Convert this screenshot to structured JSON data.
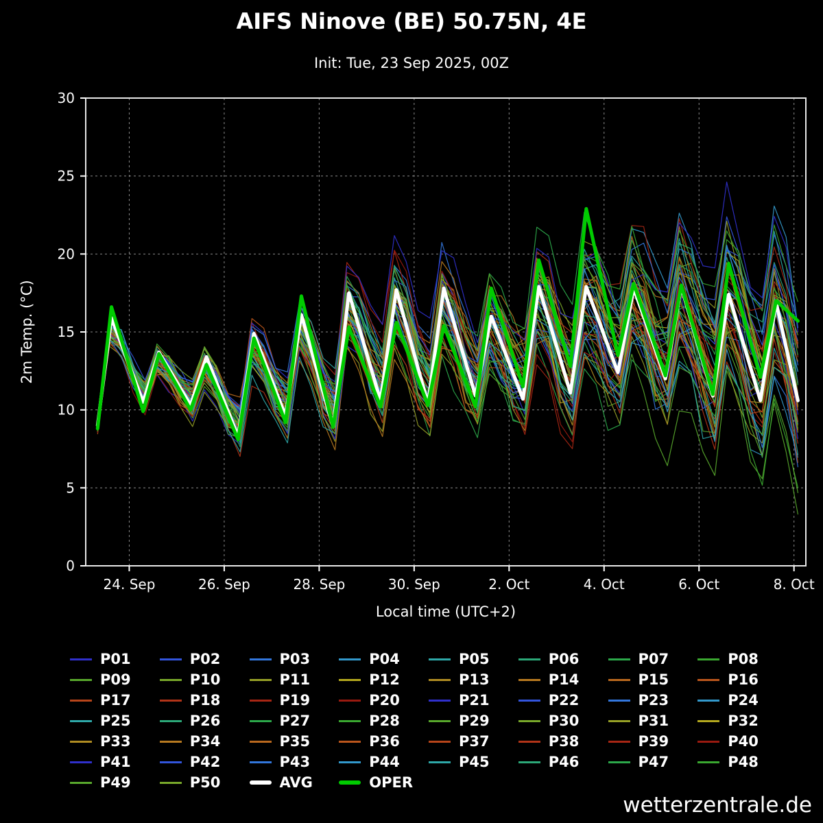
{
  "page": {
    "background": "#000000",
    "watermark": "wetterzentrale.de"
  },
  "chart_data": {
    "type": "line",
    "title": "AIFS Ninove (BE) 50.75N, 4E",
    "subtitle": "Init: Tue, 23 Sep 2025, 00Z",
    "xlabel": "Local time (UTC+2)",
    "ylabel": "2m Temp. (°C)",
    "ylim": [
      0,
      30
    ],
    "yticks": [
      0,
      5,
      10,
      15,
      20,
      25,
      30
    ],
    "x_domain_hours": [
      -22,
      342
    ],
    "xticks": [
      {
        "t": 0,
        "label": "24. Sep"
      },
      {
        "t": 48,
        "label": "26. Sep"
      },
      {
        "t": 96,
        "label": "28. Sep"
      },
      {
        "t": 144,
        "label": "30. Sep"
      },
      {
        "t": 192,
        "label": "2. Oct"
      },
      {
        "t": 240,
        "label": "4. Oct"
      },
      {
        "t": 288,
        "label": "6. Oct"
      },
      {
        "t": 336,
        "label": "8. Oct"
      }
    ],
    "grid": {
      "color": "#8a8a8a",
      "dash": "3 4",
      "on": true
    },
    "series_main": [
      {
        "name": "AVG",
        "color": "#ffffff",
        "width": 5,
        "points": [
          [
            -16,
            9.0
          ],
          [
            -9,
            15.9
          ],
          [
            7,
            10.5
          ],
          [
            15,
            13.7
          ],
          [
            31,
            10.3
          ],
          [
            39,
            13.4
          ],
          [
            55,
            8.3
          ],
          [
            63,
            14.9
          ],
          [
            79,
            9.6
          ],
          [
            87,
            16.1
          ],
          [
            103,
            8.9
          ],
          [
            111,
            17.5
          ],
          [
            127,
            10.6
          ],
          [
            135,
            17.7
          ],
          [
            151,
            10.4
          ],
          [
            159,
            17.8
          ],
          [
            175,
            10.9
          ],
          [
            183,
            16.0
          ],
          [
            199,
            10.7
          ],
          [
            207,
            17.9
          ],
          [
            223,
            11.1
          ],
          [
            231,
            17.9
          ],
          [
            247,
            12.4
          ],
          [
            255,
            17.8
          ],
          [
            271,
            12.0
          ],
          [
            279,
            17.9
          ],
          [
            295,
            10.9
          ],
          [
            303,
            17.4
          ],
          [
            319,
            10.6
          ],
          [
            327,
            16.9
          ],
          [
            338,
            10.6
          ]
        ]
      },
      {
        "name": "OPER",
        "color": "#00cc00",
        "width": 5,
        "points": [
          [
            -16,
            8.8
          ],
          [
            -9,
            16.6
          ],
          [
            7,
            9.9
          ],
          [
            15,
            13.6
          ],
          [
            31,
            10.0
          ],
          [
            39,
            12.9
          ],
          [
            55,
            8.1
          ],
          [
            63,
            14.6
          ],
          [
            79,
            9.2
          ],
          [
            87,
            17.3
          ],
          [
            103,
            8.9
          ],
          [
            111,
            15.3
          ],
          [
            127,
            10.2
          ],
          [
            135,
            15.6
          ],
          [
            151,
            10.3
          ],
          [
            159,
            15.4
          ],
          [
            175,
            10.2
          ],
          [
            183,
            17.8
          ],
          [
            199,
            11.5
          ],
          [
            207,
            19.6
          ],
          [
            223,
            12.8
          ],
          [
            231,
            22.9
          ],
          [
            247,
            13.5
          ],
          [
            255,
            18.1
          ],
          [
            271,
            12.2
          ],
          [
            279,
            18.0
          ],
          [
            295,
            11.0
          ],
          [
            303,
            19.4
          ],
          [
            319,
            12.1
          ],
          [
            327,
            17.0
          ],
          [
            338,
            15.7
          ]
        ]
      }
    ],
    "ensemble": {
      "count": 50,
      "step_hours": 6,
      "members_note": "50 ensemble member traces overlap densely; individual values not legible, drawn as AVG plus spread growing from ±1.5°C to ±6°C",
      "spread_scale": {
        "start": 0.5,
        "end": 2.6
      },
      "labels": [
        "P01",
        "P02",
        "P03",
        "P04",
        "P05",
        "P06",
        "P07",
        "P08",
        "P09",
        "P10",
        "P11",
        "P12",
        "P13",
        "P14",
        "P15",
        "P16",
        "P17",
        "P18",
        "P19",
        "P20",
        "P21",
        "P22",
        "P23",
        "P24",
        "P25",
        "P26",
        "P27",
        "P28",
        "P29",
        "P30",
        "P31",
        "P32",
        "P33",
        "P34",
        "P35",
        "P36",
        "P37",
        "P38",
        "P39",
        "P40",
        "P41",
        "P42",
        "P43",
        "P44",
        "P45",
        "P46",
        "P47",
        "P48",
        "P49",
        "P50"
      ],
      "colors": [
        "#3030cc",
        "#3355dd",
        "#3377dd",
        "#3399cc",
        "#2ea8a8",
        "#2ca878",
        "#2ca84a",
        "#3aa830",
        "#58a82c",
        "#78a82a",
        "#96a026",
        "#b3a81e",
        "#b08c22",
        "#b87a20",
        "#ba691e",
        "#bb561c",
        "#b8451a",
        "#b23418",
        "#a82614",
        "#9a1a10",
        "#3030cc",
        "#3355dd",
        "#3377dd",
        "#3399cc",
        "#2ea8a8",
        "#2ca878",
        "#2ca84a",
        "#3aa830",
        "#58a82c",
        "#78a82a",
        "#96a026",
        "#b3a81e",
        "#b08c22",
        "#b87a20",
        "#ba691e",
        "#bb561c",
        "#b8451a",
        "#b23418",
        "#a82614",
        "#9a1a10",
        "#3030cc",
        "#3355dd",
        "#3377dd",
        "#3399cc",
        "#2ea8a8",
        "#2ca878",
        "#2ca84a",
        "#3aa830",
        "#58a82c",
        "#78a82a"
      ]
    },
    "legend": {
      "position": "bottom",
      "columns": 8,
      "avg_label": "AVG",
      "oper_label": "OPER"
    }
  }
}
